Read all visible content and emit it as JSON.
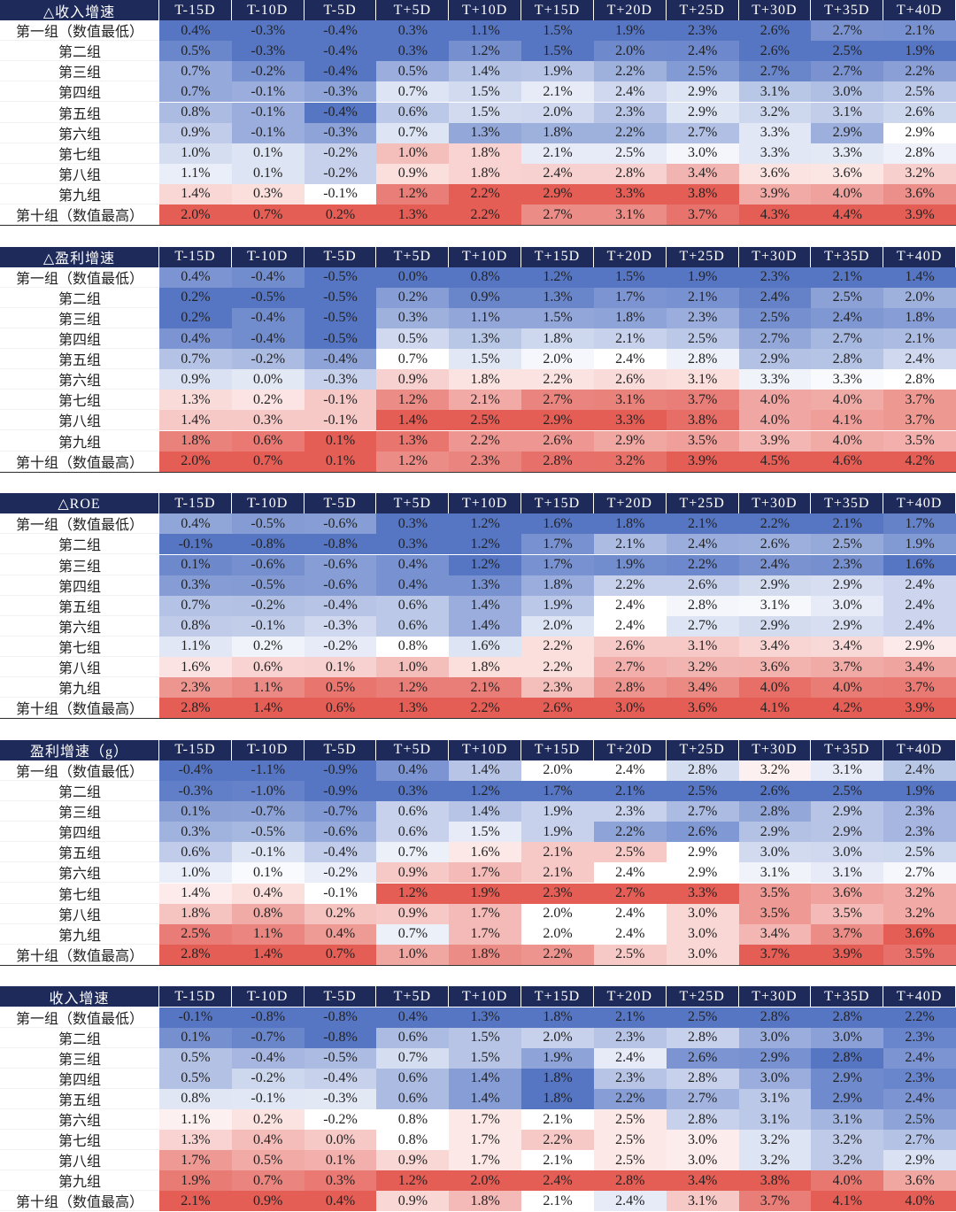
{
  "tables": [
    {
      "title": "△收入增速",
      "columns": [
        "T-15D",
        "T-10D",
        "T-5D",
        "T+5D",
        "T+10D",
        "T+15D",
        "T+20D",
        "T+25D",
        "T+30D",
        "T+35D",
        "T+40D"
      ],
      "rows": [
        {
          "label": "第一组（数值最低）",
          "cells": [
            "0.4%",
            "-0.3%",
            "-0.4%",
            "0.3%",
            "1.1%",
            "1.5%",
            "1.9%",
            "2.3%",
            "2.6%",
            "2.7%",
            "2.1%"
          ]
        },
        {
          "label": "第二组",
          "cells": [
            "0.5%",
            "-0.3%",
            "-0.4%",
            "0.3%",
            "1.2%",
            "1.5%",
            "2.0%",
            "2.4%",
            "2.6%",
            "2.5%",
            "1.9%"
          ]
        },
        {
          "label": "第三组",
          "cells": [
            "0.7%",
            "-0.2%",
            "-0.4%",
            "0.5%",
            "1.4%",
            "1.9%",
            "2.2%",
            "2.5%",
            "2.7%",
            "2.7%",
            "2.2%"
          ]
        },
        {
          "label": "第四组",
          "cells": [
            "0.7%",
            "-0.1%",
            "-0.3%",
            "0.7%",
            "1.5%",
            "2.1%",
            "2.4%",
            "2.9%",
            "3.1%",
            "3.0%",
            "2.5%"
          ]
        },
        {
          "label": "第五组",
          "cells": [
            "0.8%",
            "-0.1%",
            "-0.4%",
            "0.6%",
            "1.5%",
            "2.0%",
            "2.3%",
            "2.9%",
            "3.2%",
            "3.1%",
            "2.6%"
          ]
        },
        {
          "label": "第六组",
          "cells": [
            "0.9%",
            "-0.1%",
            "-0.3%",
            "0.7%",
            "1.3%",
            "1.8%",
            "2.2%",
            "2.7%",
            "3.3%",
            "2.9%",
            "2.9%"
          ]
        },
        {
          "label": "第七组",
          "cells": [
            "1.0%",
            "0.1%",
            "-0.2%",
            "1.0%",
            "1.8%",
            "2.1%",
            "2.5%",
            "3.0%",
            "3.3%",
            "3.3%",
            "2.8%"
          ]
        },
        {
          "label": "第八组",
          "cells": [
            "1.1%",
            "0.1%",
            "-0.2%",
            "0.9%",
            "1.8%",
            "2.4%",
            "2.8%",
            "3.4%",
            "3.6%",
            "3.6%",
            "3.2%"
          ]
        },
        {
          "label": "第九组",
          "cells": [
            "1.4%",
            "0.3%",
            "-0.1%",
            "1.2%",
            "2.2%",
            "2.9%",
            "3.3%",
            "3.8%",
            "3.9%",
            "4.0%",
            "3.6%"
          ]
        },
        {
          "label": "第十组（数值最高）",
          "cells": [
            "2.0%",
            "0.7%",
            "0.2%",
            "1.3%",
            "2.2%",
            "2.7%",
            "3.1%",
            "3.7%",
            "4.3%",
            "4.4%",
            "3.9%"
          ]
        }
      ]
    },
    {
      "title": "△盈利增速",
      "columns": [
        "T-15D",
        "T-10D",
        "T-5D",
        "T+5D",
        "T+10D",
        "T+15D",
        "T+20D",
        "T+25D",
        "T+30D",
        "T+35D",
        "T+40D"
      ],
      "rows": [
        {
          "label": "第一组（数值最低）",
          "cells": [
            "0.4%",
            "-0.4%",
            "-0.5%",
            "0.0%",
            "0.8%",
            "1.2%",
            "1.5%",
            "1.9%",
            "2.3%",
            "2.1%",
            "1.4%"
          ]
        },
        {
          "label": "第二组",
          "cells": [
            "0.2%",
            "-0.5%",
            "-0.5%",
            "0.2%",
            "0.9%",
            "1.3%",
            "1.7%",
            "2.1%",
            "2.4%",
            "2.5%",
            "2.0%"
          ]
        },
        {
          "label": "第三组",
          "cells": [
            "0.2%",
            "-0.4%",
            "-0.5%",
            "0.3%",
            "1.1%",
            "1.5%",
            "1.8%",
            "2.3%",
            "2.5%",
            "2.4%",
            "1.8%"
          ]
        },
        {
          "label": "第四组",
          "cells": [
            "0.4%",
            "-0.4%",
            "-0.5%",
            "0.5%",
            "1.3%",
            "1.8%",
            "2.1%",
            "2.5%",
            "2.7%",
            "2.7%",
            "2.1%"
          ]
        },
        {
          "label": "第五组",
          "cells": [
            "0.7%",
            "-0.2%",
            "-0.4%",
            "0.7%",
            "1.5%",
            "2.0%",
            "2.4%",
            "2.8%",
            "2.9%",
            "2.8%",
            "2.4%"
          ]
        },
        {
          "label": "第六组",
          "cells": [
            "0.9%",
            "0.0%",
            "-0.3%",
            "0.9%",
            "1.8%",
            "2.2%",
            "2.6%",
            "3.1%",
            "3.3%",
            "3.3%",
            "2.8%"
          ]
        },
        {
          "label": "第七组",
          "cells": [
            "1.3%",
            "0.2%",
            "-0.1%",
            "1.2%",
            "2.1%",
            "2.7%",
            "3.1%",
            "3.7%",
            "4.0%",
            "4.0%",
            "3.7%"
          ]
        },
        {
          "label": "第八组",
          "cells": [
            "1.4%",
            "0.3%",
            "-0.1%",
            "1.4%",
            "2.5%",
            "2.9%",
            "3.3%",
            "3.8%",
            "4.0%",
            "4.1%",
            "3.7%"
          ]
        },
        {
          "label": "第九组",
          "cells": [
            "1.8%",
            "0.6%",
            "0.1%",
            "1.3%",
            "2.2%",
            "2.6%",
            "2.9%",
            "3.5%",
            "3.9%",
            "4.0%",
            "3.5%"
          ]
        },
        {
          "label": "第十组（数值最高）",
          "cells": [
            "2.0%",
            "0.7%",
            "0.1%",
            "1.2%",
            "2.3%",
            "2.8%",
            "3.2%",
            "3.9%",
            "4.5%",
            "4.6%",
            "4.2%"
          ]
        }
      ]
    },
    {
      "title": "△ROE",
      "columns": [
        "T-15D",
        "T-10D",
        "T-5D",
        "T+5D",
        "T+10D",
        "T+15D",
        "T+20D",
        "T+25D",
        "T+30D",
        "T+35D",
        "T+40D"
      ],
      "rows": [
        {
          "label": "第一组（数值最低）",
          "cells": [
            "0.4%",
            "-0.5%",
            "-0.6%",
            "0.3%",
            "1.2%",
            "1.6%",
            "1.8%",
            "2.1%",
            "2.2%",
            "2.1%",
            "1.7%"
          ]
        },
        {
          "label": "第二组",
          "cells": [
            "-0.1%",
            "-0.8%",
            "-0.8%",
            "0.3%",
            "1.2%",
            "1.7%",
            "2.1%",
            "2.4%",
            "2.6%",
            "2.5%",
            "1.9%"
          ]
        },
        {
          "label": "第三组",
          "cells": [
            "0.1%",
            "-0.6%",
            "-0.6%",
            "0.4%",
            "1.2%",
            "1.7%",
            "1.9%",
            "2.2%",
            "2.4%",
            "2.3%",
            "1.6%"
          ]
        },
        {
          "label": "第四组",
          "cells": [
            "0.3%",
            "-0.5%",
            "-0.6%",
            "0.4%",
            "1.3%",
            "1.8%",
            "2.2%",
            "2.6%",
            "2.9%",
            "2.9%",
            "2.4%"
          ]
        },
        {
          "label": "第五组",
          "cells": [
            "0.7%",
            "-0.2%",
            "-0.4%",
            "0.6%",
            "1.4%",
            "1.9%",
            "2.4%",
            "2.8%",
            "3.1%",
            "3.0%",
            "2.4%"
          ]
        },
        {
          "label": "第六组",
          "cells": [
            "0.8%",
            "-0.1%",
            "-0.3%",
            "0.6%",
            "1.4%",
            "2.0%",
            "2.4%",
            "2.7%",
            "2.9%",
            "2.9%",
            "2.4%"
          ]
        },
        {
          "label": "第七组",
          "cells": [
            "1.1%",
            "0.2%",
            "-0.2%",
            "0.8%",
            "1.6%",
            "2.2%",
            "2.6%",
            "3.1%",
            "3.4%",
            "3.4%",
            "2.9%"
          ]
        },
        {
          "label": "第八组",
          "cells": [
            "1.6%",
            "0.6%",
            "0.1%",
            "1.0%",
            "1.8%",
            "2.2%",
            "2.7%",
            "3.2%",
            "3.6%",
            "3.7%",
            "3.4%"
          ]
        },
        {
          "label": "第九组",
          "cells": [
            "2.3%",
            "1.1%",
            "0.5%",
            "1.2%",
            "2.1%",
            "2.3%",
            "2.8%",
            "3.4%",
            "4.0%",
            "4.0%",
            "3.7%"
          ]
        },
        {
          "label": "第十组（数值最高）",
          "cells": [
            "2.8%",
            "1.4%",
            "0.6%",
            "1.3%",
            "2.2%",
            "2.6%",
            "3.0%",
            "3.6%",
            "4.1%",
            "4.2%",
            "3.9%"
          ]
        }
      ]
    },
    {
      "title": "盈利增速（g）",
      "columns": [
        "T-15D",
        "T-10D",
        "T-5D",
        "T+5D",
        "T+10D",
        "T+15D",
        "T+20D",
        "T+25D",
        "T+30D",
        "T+35D",
        "T+40D"
      ],
      "rows": [
        {
          "label": "第一组（数值最低）",
          "cells": [
            "-0.4%",
            "-1.1%",
            "-0.9%",
            "0.4%",
            "1.4%",
            "2.0%",
            "2.4%",
            "2.8%",
            "3.2%",
            "3.1%",
            "2.4%"
          ]
        },
        {
          "label": "第二组",
          "cells": [
            "-0.3%",
            "-1.0%",
            "-0.9%",
            "0.3%",
            "1.2%",
            "1.7%",
            "2.1%",
            "2.5%",
            "2.6%",
            "2.5%",
            "1.9%"
          ]
        },
        {
          "label": "第三组",
          "cells": [
            "0.1%",
            "-0.7%",
            "-0.7%",
            "0.6%",
            "1.4%",
            "1.9%",
            "2.3%",
            "2.7%",
            "2.8%",
            "2.9%",
            "2.3%"
          ]
        },
        {
          "label": "第四组",
          "cells": [
            "0.3%",
            "-0.5%",
            "-0.6%",
            "0.6%",
            "1.5%",
            "1.9%",
            "2.2%",
            "2.6%",
            "2.9%",
            "2.9%",
            "2.3%"
          ]
        },
        {
          "label": "第五组",
          "cells": [
            "0.6%",
            "-0.1%",
            "-0.4%",
            "0.7%",
            "1.6%",
            "2.1%",
            "2.5%",
            "2.9%",
            "3.0%",
            "3.0%",
            "2.5%"
          ]
        },
        {
          "label": "第六组",
          "cells": [
            "1.0%",
            "0.1%",
            "-0.2%",
            "0.9%",
            "1.7%",
            "2.1%",
            "2.4%",
            "2.9%",
            "3.1%",
            "3.1%",
            "2.7%"
          ]
        },
        {
          "label": "第七组",
          "cells": [
            "1.4%",
            "0.4%",
            "-0.1%",
            "1.2%",
            "1.9%",
            "2.3%",
            "2.7%",
            "3.3%",
            "3.5%",
            "3.6%",
            "3.2%"
          ]
        },
        {
          "label": "第八组",
          "cells": [
            "1.8%",
            "0.8%",
            "0.2%",
            "0.9%",
            "1.7%",
            "2.0%",
            "2.4%",
            "3.0%",
            "3.5%",
            "3.5%",
            "3.2%"
          ]
        },
        {
          "label": "第九组",
          "cells": [
            "2.5%",
            "1.1%",
            "0.4%",
            "0.7%",
            "1.7%",
            "2.0%",
            "2.4%",
            "3.0%",
            "3.4%",
            "3.7%",
            "3.6%"
          ]
        },
        {
          "label": "第十组（数值最高）",
          "cells": [
            "2.8%",
            "1.4%",
            "0.7%",
            "1.0%",
            "1.8%",
            "2.2%",
            "2.5%",
            "3.0%",
            "3.7%",
            "3.9%",
            "3.5%"
          ]
        }
      ]
    },
    {
      "title": "收入增速",
      "columns": [
        "T-15D",
        "T-10D",
        "T-5D",
        "T+5D",
        "T+10D",
        "T+15D",
        "T+20D",
        "T+25D",
        "T+30D",
        "T+35D",
        "T+40D"
      ],
      "rows": [
        {
          "label": "第一组（数值最低）",
          "cells": [
            "-0.1%",
            "-0.8%",
            "-0.8%",
            "0.4%",
            "1.3%",
            "1.8%",
            "2.1%",
            "2.5%",
            "2.8%",
            "2.8%",
            "2.2%"
          ]
        },
        {
          "label": "第二组",
          "cells": [
            "0.1%",
            "-0.7%",
            "-0.8%",
            "0.6%",
            "1.5%",
            "2.0%",
            "2.3%",
            "2.8%",
            "3.0%",
            "3.0%",
            "2.3%"
          ]
        },
        {
          "label": "第三组",
          "cells": [
            "0.5%",
            "-0.4%",
            "-0.5%",
            "0.7%",
            "1.5%",
            "1.9%",
            "2.4%",
            "2.6%",
            "2.9%",
            "2.8%",
            "2.4%"
          ]
        },
        {
          "label": "第四组",
          "cells": [
            "0.5%",
            "-0.2%",
            "-0.4%",
            "0.6%",
            "1.4%",
            "1.8%",
            "2.3%",
            "2.8%",
            "3.0%",
            "2.9%",
            "2.3%"
          ]
        },
        {
          "label": "第五组",
          "cells": [
            "0.8%",
            "-0.1%",
            "-0.3%",
            "0.6%",
            "1.4%",
            "1.8%",
            "2.2%",
            "2.7%",
            "3.1%",
            "2.9%",
            "2.4%"
          ]
        },
        {
          "label": "第六组",
          "cells": [
            "1.1%",
            "0.2%",
            "-0.2%",
            "0.8%",
            "1.7%",
            "2.1%",
            "2.5%",
            "2.8%",
            "3.1%",
            "3.1%",
            "2.5%"
          ]
        },
        {
          "label": "第七组",
          "cells": [
            "1.3%",
            "0.4%",
            "0.0%",
            "0.8%",
            "1.7%",
            "2.2%",
            "2.5%",
            "3.0%",
            "3.2%",
            "3.2%",
            "2.7%"
          ]
        },
        {
          "label": "第八组",
          "cells": [
            "1.7%",
            "0.5%",
            "0.1%",
            "0.9%",
            "1.7%",
            "2.1%",
            "2.5%",
            "3.0%",
            "3.2%",
            "3.2%",
            "2.9%"
          ]
        },
        {
          "label": "第九组",
          "cells": [
            "1.9%",
            "0.7%",
            "0.3%",
            "1.2%",
            "2.0%",
            "2.4%",
            "2.8%",
            "3.4%",
            "3.8%",
            "4.0%",
            "3.6%"
          ]
        },
        {
          "label": "第十组（数值最高）",
          "cells": [
            "2.1%",
            "0.9%",
            "0.4%",
            "0.9%",
            "1.8%",
            "2.1%",
            "2.4%",
            "3.1%",
            "3.7%",
            "4.1%",
            "4.0%"
          ]
        }
      ]
    }
  ]
}
